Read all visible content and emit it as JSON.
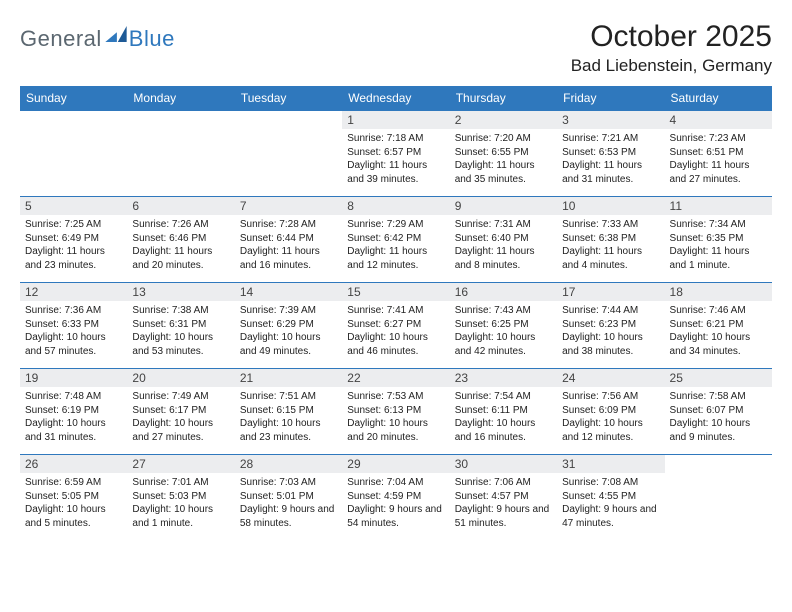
{
  "logo": {
    "text1": "General",
    "text2": "Blue"
  },
  "title": {
    "month": "October 2025",
    "location": "Bad Liebenstein, Germany"
  },
  "colors": {
    "accent": "#2f78bd",
    "header_text": "#ffffff",
    "daybar": "#ecedef",
    "text": "#222222",
    "logo_gray": "#5b6770"
  },
  "weekdays": [
    "Sunday",
    "Monday",
    "Tuesday",
    "Wednesday",
    "Thursday",
    "Friday",
    "Saturday"
  ],
  "weeks": [
    [
      null,
      null,
      null,
      {
        "n": "1",
        "sr": "Sunrise: 7:18 AM",
        "ss": "Sunset: 6:57 PM",
        "dl": "Daylight: 11 hours and 39 minutes."
      },
      {
        "n": "2",
        "sr": "Sunrise: 7:20 AM",
        "ss": "Sunset: 6:55 PM",
        "dl": "Daylight: 11 hours and 35 minutes."
      },
      {
        "n": "3",
        "sr": "Sunrise: 7:21 AM",
        "ss": "Sunset: 6:53 PM",
        "dl": "Daylight: 11 hours and 31 minutes."
      },
      {
        "n": "4",
        "sr": "Sunrise: 7:23 AM",
        "ss": "Sunset: 6:51 PM",
        "dl": "Daylight: 11 hours and 27 minutes."
      }
    ],
    [
      {
        "n": "5",
        "sr": "Sunrise: 7:25 AM",
        "ss": "Sunset: 6:49 PM",
        "dl": "Daylight: 11 hours and 23 minutes."
      },
      {
        "n": "6",
        "sr": "Sunrise: 7:26 AM",
        "ss": "Sunset: 6:46 PM",
        "dl": "Daylight: 11 hours and 20 minutes."
      },
      {
        "n": "7",
        "sr": "Sunrise: 7:28 AM",
        "ss": "Sunset: 6:44 PM",
        "dl": "Daylight: 11 hours and 16 minutes."
      },
      {
        "n": "8",
        "sr": "Sunrise: 7:29 AM",
        "ss": "Sunset: 6:42 PM",
        "dl": "Daylight: 11 hours and 12 minutes."
      },
      {
        "n": "9",
        "sr": "Sunrise: 7:31 AM",
        "ss": "Sunset: 6:40 PM",
        "dl": "Daylight: 11 hours and 8 minutes."
      },
      {
        "n": "10",
        "sr": "Sunrise: 7:33 AM",
        "ss": "Sunset: 6:38 PM",
        "dl": "Daylight: 11 hours and 4 minutes."
      },
      {
        "n": "11",
        "sr": "Sunrise: 7:34 AM",
        "ss": "Sunset: 6:35 PM",
        "dl": "Daylight: 11 hours and 1 minute."
      }
    ],
    [
      {
        "n": "12",
        "sr": "Sunrise: 7:36 AM",
        "ss": "Sunset: 6:33 PM",
        "dl": "Daylight: 10 hours and 57 minutes."
      },
      {
        "n": "13",
        "sr": "Sunrise: 7:38 AM",
        "ss": "Sunset: 6:31 PM",
        "dl": "Daylight: 10 hours and 53 minutes."
      },
      {
        "n": "14",
        "sr": "Sunrise: 7:39 AM",
        "ss": "Sunset: 6:29 PM",
        "dl": "Daylight: 10 hours and 49 minutes."
      },
      {
        "n": "15",
        "sr": "Sunrise: 7:41 AM",
        "ss": "Sunset: 6:27 PM",
        "dl": "Daylight: 10 hours and 46 minutes."
      },
      {
        "n": "16",
        "sr": "Sunrise: 7:43 AM",
        "ss": "Sunset: 6:25 PM",
        "dl": "Daylight: 10 hours and 42 minutes."
      },
      {
        "n": "17",
        "sr": "Sunrise: 7:44 AM",
        "ss": "Sunset: 6:23 PM",
        "dl": "Daylight: 10 hours and 38 minutes."
      },
      {
        "n": "18",
        "sr": "Sunrise: 7:46 AM",
        "ss": "Sunset: 6:21 PM",
        "dl": "Daylight: 10 hours and 34 minutes."
      }
    ],
    [
      {
        "n": "19",
        "sr": "Sunrise: 7:48 AM",
        "ss": "Sunset: 6:19 PM",
        "dl": "Daylight: 10 hours and 31 minutes."
      },
      {
        "n": "20",
        "sr": "Sunrise: 7:49 AM",
        "ss": "Sunset: 6:17 PM",
        "dl": "Daylight: 10 hours and 27 minutes."
      },
      {
        "n": "21",
        "sr": "Sunrise: 7:51 AM",
        "ss": "Sunset: 6:15 PM",
        "dl": "Daylight: 10 hours and 23 minutes."
      },
      {
        "n": "22",
        "sr": "Sunrise: 7:53 AM",
        "ss": "Sunset: 6:13 PM",
        "dl": "Daylight: 10 hours and 20 minutes."
      },
      {
        "n": "23",
        "sr": "Sunrise: 7:54 AM",
        "ss": "Sunset: 6:11 PM",
        "dl": "Daylight: 10 hours and 16 minutes."
      },
      {
        "n": "24",
        "sr": "Sunrise: 7:56 AM",
        "ss": "Sunset: 6:09 PM",
        "dl": "Daylight: 10 hours and 12 minutes."
      },
      {
        "n": "25",
        "sr": "Sunrise: 7:58 AM",
        "ss": "Sunset: 6:07 PM",
        "dl": "Daylight: 10 hours and 9 minutes."
      }
    ],
    [
      {
        "n": "26",
        "sr": "Sunrise: 6:59 AM",
        "ss": "Sunset: 5:05 PM",
        "dl": "Daylight: 10 hours and 5 minutes."
      },
      {
        "n": "27",
        "sr": "Sunrise: 7:01 AM",
        "ss": "Sunset: 5:03 PM",
        "dl": "Daylight: 10 hours and 1 minute."
      },
      {
        "n": "28",
        "sr": "Sunrise: 7:03 AM",
        "ss": "Sunset: 5:01 PM",
        "dl": "Daylight: 9 hours and 58 minutes."
      },
      {
        "n": "29",
        "sr": "Sunrise: 7:04 AM",
        "ss": "Sunset: 4:59 PM",
        "dl": "Daylight: 9 hours and 54 minutes."
      },
      {
        "n": "30",
        "sr": "Sunrise: 7:06 AM",
        "ss": "Sunset: 4:57 PM",
        "dl": "Daylight: 9 hours and 51 minutes."
      },
      {
        "n": "31",
        "sr": "Sunrise: 7:08 AM",
        "ss": "Sunset: 4:55 PM",
        "dl": "Daylight: 9 hours and 47 minutes."
      },
      null
    ]
  ]
}
